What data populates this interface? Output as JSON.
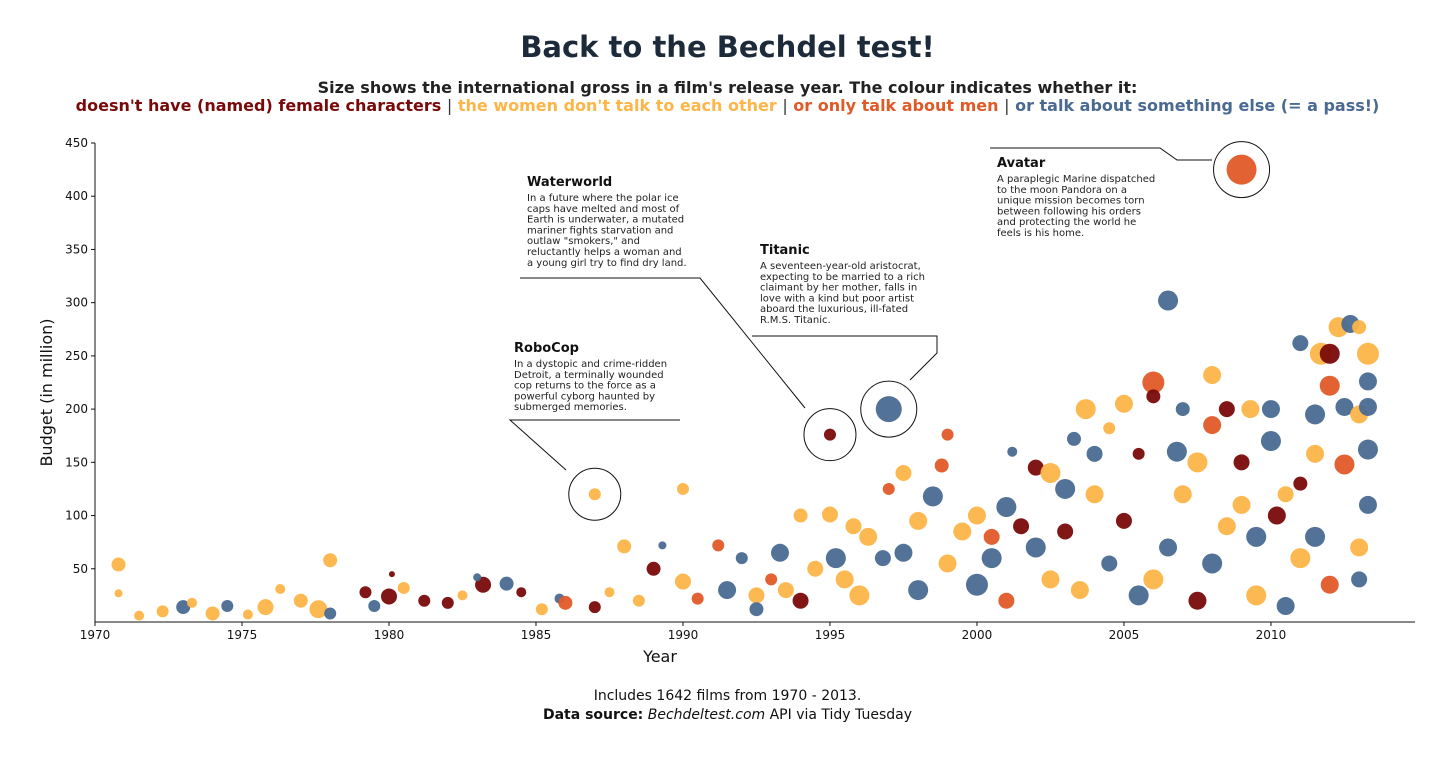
{
  "title": "Back to the Bechdel test!",
  "subtitle": "Size shows the international gross in a film's release year. The colour indicates whether it:",
  "legend": [
    {
      "label": "doesn't have (named) female characters",
      "color": "#7a0a0a"
    },
    {
      "label": "the women don't talk to each other",
      "color": "#fdb548"
    },
    {
      "label": "or only talk about men",
      "color": "#e05a28"
    },
    {
      "label": "or talk about something else (= a pass!)",
      "color": "#4a6a92"
    }
  ],
  "legend_separator": "|",
  "caption": "Includes 1642 films from 1970 - 2013.",
  "source": {
    "label": "Data source:",
    "site": "Bechdeltest.com",
    "rest": "API via Tidy Tuesday"
  },
  "chart_data": {
    "type": "scatter",
    "xlabel": "Year",
    "ylabel": "Budget (in million)",
    "xlim": [
      1970,
      2014.9
    ],
    "ylim": [
      0,
      450
    ],
    "x_ticks": [
      1970,
      1975,
      1980,
      1985,
      1990,
      1995,
      2000,
      2005,
      2010
    ],
    "y_ticks": [
      50,
      100,
      150,
      200,
      250,
      300,
      350,
      400,
      450
    ],
    "points": [
      {
        "x": 1970.8,
        "y": 54,
        "s": 7,
        "c": "#fdb548"
      },
      {
        "x": 1970.8,
        "y": 27,
        "s": 4,
        "c": "#fdb548"
      },
      {
        "x": 1971.5,
        "y": 6,
        "s": 5,
        "c": "#fdb548"
      },
      {
        "x": 1972.3,
        "y": 10,
        "s": 6,
        "c": "#fdb548"
      },
      {
        "x": 1973,
        "y": 14,
        "s": 7,
        "c": "#4a6a92"
      },
      {
        "x": 1973.3,
        "y": 18,
        "s": 5,
        "c": "#fdb548"
      },
      {
        "x": 1974,
        "y": 8,
        "s": 7,
        "c": "#fdb548"
      },
      {
        "x": 1974.5,
        "y": 15,
        "s": 6,
        "c": "#4a6a92"
      },
      {
        "x": 1975.2,
        "y": 7,
        "s": 5,
        "c": "#fdb548"
      },
      {
        "x": 1975.8,
        "y": 14,
        "s": 8,
        "c": "#fdb548"
      },
      {
        "x": 1976.3,
        "y": 31,
        "s": 5,
        "c": "#fdb548"
      },
      {
        "x": 1977,
        "y": 20,
        "s": 7,
        "c": "#fdb548"
      },
      {
        "x": 1977.6,
        "y": 12,
        "s": 9,
        "c": "#fdb548"
      },
      {
        "x": 1978,
        "y": 58,
        "s": 7,
        "c": "#fdb548"
      },
      {
        "x": 1978,
        "y": 8,
        "s": 6,
        "c": "#4a6a92"
      },
      {
        "x": 1979.2,
        "y": 28,
        "s": 6,
        "c": "#7a0a0a"
      },
      {
        "x": 1979.5,
        "y": 15,
        "s": 6,
        "c": "#4a6a92"
      },
      {
        "x": 1980,
        "y": 24,
        "s": 8,
        "c": "#7a0a0a"
      },
      {
        "x": 1980.1,
        "y": 45,
        "s": 3,
        "c": "#7a0a0a"
      },
      {
        "x": 1980.5,
        "y": 32,
        "s": 6,
        "c": "#fdb548"
      },
      {
        "x": 1981.2,
        "y": 20,
        "s": 6,
        "c": "#7a0a0a"
      },
      {
        "x": 1982,
        "y": 18,
        "s": 6,
        "c": "#7a0a0a"
      },
      {
        "x": 1982.5,
        "y": 25,
        "s": 5,
        "c": "#fdb548"
      },
      {
        "x": 1983.2,
        "y": 35,
        "s": 8,
        "c": "#7a0a0a"
      },
      {
        "x": 1983,
        "y": 42,
        "s": 4,
        "c": "#4a6a92"
      },
      {
        "x": 1984,
        "y": 36,
        "s": 7,
        "c": "#4a6a92"
      },
      {
        "x": 1984.5,
        "y": 28,
        "s": 5,
        "c": "#7a0a0a"
      },
      {
        "x": 1985.2,
        "y": 12,
        "s": 6,
        "c": "#fdb548"
      },
      {
        "x": 1985.8,
        "y": 22,
        "s": 5,
        "c": "#4a6a92"
      },
      {
        "x": 1986,
        "y": 18,
        "s": 7,
        "c": "#e05a28"
      },
      {
        "x": 1987,
        "y": 120,
        "s": 6,
        "c": "#fdb548"
      },
      {
        "x": 1987,
        "y": 14,
        "s": 6,
        "c": "#7a0a0a"
      },
      {
        "x": 1987.5,
        "y": 28,
        "s": 5,
        "c": "#fdb548"
      },
      {
        "x": 1988,
        "y": 71,
        "s": 7,
        "c": "#fdb548"
      },
      {
        "x": 1988.5,
        "y": 20,
        "s": 6,
        "c": "#fdb548"
      },
      {
        "x": 1989,
        "y": 50,
        "s": 7,
        "c": "#7a0a0a"
      },
      {
        "x": 1989.3,
        "y": 72,
        "s": 4,
        "c": "#4a6a92"
      },
      {
        "x": 1990,
        "y": 125,
        "s": 6,
        "c": "#fdb548"
      },
      {
        "x": 1990,
        "y": 38,
        "s": 8,
        "c": "#fdb548"
      },
      {
        "x": 1990.5,
        "y": 22,
        "s": 6,
        "c": "#e05a28"
      },
      {
        "x": 1991.2,
        "y": 72,
        "s": 6,
        "c": "#e05a28"
      },
      {
        "x": 1991.5,
        "y": 30,
        "s": 9,
        "c": "#4a6a92"
      },
      {
        "x": 1992,
        "y": 60,
        "s": 6,
        "c": "#4a6a92"
      },
      {
        "x": 1992.5,
        "y": 25,
        "s": 8,
        "c": "#fdb548"
      },
      {
        "x": 1993,
        "y": 40,
        "s": 6,
        "c": "#e05a28"
      },
      {
        "x": 1993.3,
        "y": 65,
        "s": 9,
        "c": "#4a6a92"
      },
      {
        "x": 1994,
        "y": 100,
        "s": 7,
        "c": "#fdb548"
      },
      {
        "x": 1994.5,
        "y": 50,
        "s": 8,
        "c": "#fdb548"
      },
      {
        "x": 1995,
        "y": 176,
        "s": 6,
        "c": "#7a0a0a"
      },
      {
        "x": 1995,
        "y": 101,
        "s": 8,
        "c": "#fdb548"
      },
      {
        "x": 1995.2,
        "y": 60,
        "s": 10,
        "c": "#4a6a92"
      },
      {
        "x": 1995.8,
        "y": 90,
        "s": 8,
        "c": "#fdb548"
      },
      {
        "x": 1996.3,
        "y": 80,
        "s": 9,
        "c": "#fdb548"
      },
      {
        "x": 1996.8,
        "y": 60,
        "s": 8,
        "c": "#4a6a92"
      },
      {
        "x": 1997,
        "y": 200,
        "s": 13,
        "c": "#4a6a92"
      },
      {
        "x": 1997,
        "y": 125,
        "s": 6,
        "c": "#e05a28"
      },
      {
        "x": 1997.5,
        "y": 140,
        "s": 8,
        "c": "#fdb548"
      },
      {
        "x": 1998,
        "y": 95,
        "s": 9,
        "c": "#fdb548"
      },
      {
        "x": 1998.5,
        "y": 118,
        "s": 10,
        "c": "#4a6a92"
      },
      {
        "x": 1998.8,
        "y": 147,
        "s": 7,
        "c": "#e05a28"
      },
      {
        "x": 1999,
        "y": 176,
        "s": 6,
        "c": "#e05a28"
      },
      {
        "x": 1999.5,
        "y": 85,
        "s": 9,
        "c": "#fdb548"
      },
      {
        "x": 2000,
        "y": 100,
        "s": 9,
        "c": "#fdb548"
      },
      {
        "x": 2000.5,
        "y": 60,
        "s": 10,
        "c": "#4a6a92"
      },
      {
        "x": 2001,
        "y": 108,
        "s": 10,
        "c": "#4a6a92"
      },
      {
        "x": 2001.2,
        "y": 160,
        "s": 5,
        "c": "#4a6a92"
      },
      {
        "x": 2001.5,
        "y": 90,
        "s": 8,
        "c": "#7a0a0a"
      },
      {
        "x": 2002,
        "y": 145,
        "s": 8,
        "c": "#7a0a0a"
      },
      {
        "x": 2002.5,
        "y": 140,
        "s": 10,
        "c": "#fdb548"
      },
      {
        "x": 2003,
        "y": 125,
        "s": 10,
        "c": "#4a6a92"
      },
      {
        "x": 2003.3,
        "y": 172,
        "s": 7,
        "c": "#4a6a92"
      },
      {
        "x": 2003.7,
        "y": 200,
        "s": 10,
        "c": "#fdb548"
      },
      {
        "x": 2004,
        "y": 158,
        "s": 8,
        "c": "#4a6a92"
      },
      {
        "x": 2004.5,
        "y": 182,
        "s": 6,
        "c": "#fdb548"
      },
      {
        "x": 2005,
        "y": 205,
        "s": 9,
        "c": "#fdb548"
      },
      {
        "x": 2005.5,
        "y": 158,
        "s": 6,
        "c": "#7a0a0a"
      },
      {
        "x": 2006,
        "y": 225,
        "s": 11,
        "c": "#e05a28"
      },
      {
        "x": 2006,
        "y": 212,
        "s": 7,
        "c": "#7a0a0a"
      },
      {
        "x": 2006.5,
        "y": 302,
        "s": 10,
        "c": "#4a6a92"
      },
      {
        "x": 2006.8,
        "y": 160,
        "s": 10,
        "c": "#4a6a92"
      },
      {
        "x": 2007,
        "y": 200,
        "s": 7,
        "c": "#4a6a92"
      },
      {
        "x": 2007.5,
        "y": 150,
        "s": 10,
        "c": "#fdb548"
      },
      {
        "x": 2008,
        "y": 232,
        "s": 9,
        "c": "#fdb548"
      },
      {
        "x": 2008,
        "y": 185,
        "s": 9,
        "c": "#e05a28"
      },
      {
        "x": 2008.5,
        "y": 200,
        "s": 8,
        "c": "#7a0a0a"
      },
      {
        "x": 2009,
        "y": 425,
        "s": 15,
        "c": "#e05a28"
      },
      {
        "x": 2009,
        "y": 150,
        "s": 8,
        "c": "#7a0a0a"
      },
      {
        "x": 2009.3,
        "y": 200,
        "s": 9,
        "c": "#fdb548"
      },
      {
        "x": 2009.5,
        "y": 80,
        "s": 10,
        "c": "#4a6a92"
      },
      {
        "x": 2010,
        "y": 200,
        "s": 9,
        "c": "#4a6a92"
      },
      {
        "x": 2010,
        "y": 170,
        "s": 10,
        "c": "#4a6a92"
      },
      {
        "x": 2010.2,
        "y": 100,
        "s": 9,
        "c": "#7a0a0a"
      },
      {
        "x": 2011,
        "y": 262,
        "s": 8,
        "c": "#4a6a92"
      },
      {
        "x": 2011,
        "y": 130,
        "s": 7,
        "c": "#7a0a0a"
      },
      {
        "x": 2011.5,
        "y": 195,
        "s": 10,
        "c": "#4a6a92"
      },
      {
        "x": 2011.5,
        "y": 158,
        "s": 9,
        "c": "#fdb548"
      },
      {
        "x": 2011.7,
        "y": 252,
        "s": 11,
        "c": "#fdb548"
      },
      {
        "x": 2012,
        "y": 252,
        "s": 10,
        "c": "#7a0a0a"
      },
      {
        "x": 2012,
        "y": 222,
        "s": 10,
        "c": "#e05a28"
      },
      {
        "x": 2012.3,
        "y": 277,
        "s": 10,
        "c": "#fdb548"
      },
      {
        "x": 2012.5,
        "y": 202,
        "s": 9,
        "c": "#4a6a92"
      },
      {
        "x": 2012.7,
        "y": 280,
        "s": 9,
        "c": "#4a6a92"
      },
      {
        "x": 2013,
        "y": 277,
        "s": 7,
        "c": "#fdb548"
      },
      {
        "x": 2013,
        "y": 195,
        "s": 9,
        "c": "#fdb548"
      },
      {
        "x": 2013.3,
        "y": 252,
        "s": 11,
        "c": "#fdb548"
      },
      {
        "x": 2013.3,
        "y": 226,
        "s": 9,
        "c": "#4a6a92"
      },
      {
        "x": 2013.3,
        "y": 202,
        "s": 9,
        "c": "#4a6a92"
      },
      {
        "x": 2013.3,
        "y": 162,
        "s": 10,
        "c": "#4a6a92"
      },
      {
        "x": 2013.3,
        "y": 110,
        "s": 9,
        "c": "#4a6a92"
      },
      {
        "x": 2012.5,
        "y": 148,
        "s": 10,
        "c": "#e05a28"
      },
      {
        "x": 2010.5,
        "y": 120,
        "s": 8,
        "c": "#fdb548"
      },
      {
        "x": 2004,
        "y": 120,
        "s": 9,
        "c": "#fdb548"
      },
      {
        "x": 2003,
        "y": 85,
        "s": 8,
        "c": "#7a0a0a"
      },
      {
        "x": 2005,
        "y": 95,
        "s": 8,
        "c": "#7a0a0a"
      },
      {
        "x": 2007,
        "y": 120,
        "s": 9,
        "c": "#fdb548"
      },
      {
        "x": 2009,
        "y": 110,
        "s": 9,
        "c": "#fdb548"
      },
      {
        "x": 2002,
        "y": 70,
        "s": 10,
        "c": "#4a6a92"
      },
      {
        "x": 2000,
        "y": 35,
        "s": 11,
        "c": "#4a6a92"
      },
      {
        "x": 2006,
        "y": 40,
        "s": 10,
        "c": "#fdb548"
      },
      {
        "x": 2008,
        "y": 55,
        "s": 10,
        "c": "#4a6a92"
      },
      {
        "x": 2011,
        "y": 60,
        "s": 10,
        "c": "#fdb548"
      },
      {
        "x": 2012,
        "y": 35,
        "s": 9,
        "c": "#e05a28"
      },
      {
        "x": 1999,
        "y": 55,
        "s": 9,
        "c": "#fdb548"
      },
      {
        "x": 1998,
        "y": 30,
        "s": 10,
        "c": "#4a6a92"
      },
      {
        "x": 1996,
        "y": 25,
        "s": 10,
        "c": "#fdb548"
      },
      {
        "x": 1994,
        "y": 20,
        "s": 8,
        "c": "#7a0a0a"
      },
      {
        "x": 1992.5,
        "y": 12,
        "s": 7,
        "c": "#4a6a92"
      },
      {
        "x": 2001,
        "y": 20,
        "s": 8,
        "c": "#e05a28"
      },
      {
        "x": 2003.5,
        "y": 30,
        "s": 9,
        "c": "#fdb548"
      },
      {
        "x": 2005.5,
        "y": 25,
        "s": 10,
        "c": "#4a6a92"
      },
      {
        "x": 2007.5,
        "y": 20,
        "s": 9,
        "c": "#7a0a0a"
      },
      {
        "x": 2009.5,
        "y": 25,
        "s": 10,
        "c": "#fdb548"
      },
      {
        "x": 2010.5,
        "y": 15,
        "s": 9,
        "c": "#4a6a92"
      },
      {
        "x": 2013,
        "y": 40,
        "s": 8,
        "c": "#4a6a92"
      },
      {
        "x": 2004.5,
        "y": 55,
        "s": 8,
        "c": "#4a6a92"
      },
      {
        "x": 2002.5,
        "y": 40,
        "s": 9,
        "c": "#fdb548"
      },
      {
        "x": 2006.5,
        "y": 70,
        "s": 9,
        "c": "#4a6a92"
      },
      {
        "x": 2008.5,
        "y": 90,
        "s": 9,
        "c": "#fdb548"
      },
      {
        "x": 2011.5,
        "y": 80,
        "s": 10,
        "c": "#4a6a92"
      },
      {
        "x": 2013,
        "y": 70,
        "s": 9,
        "c": "#fdb548"
      },
      {
        "x": 2000.5,
        "y": 80,
        "s": 8,
        "c": "#e05a28"
      },
      {
        "x": 1997.5,
        "y": 65,
        "s": 9,
        "c": "#4a6a92"
      },
      {
        "x": 1995.5,
        "y": 40,
        "s": 9,
        "c": "#fdb548"
      },
      {
        "x": 1993.5,
        "y": 30,
        "s": 8,
        "c": "#fdb548"
      }
    ],
    "annotations": [
      {
        "title": "RoboCop",
        "lines": [
          "In a dystopic and crime-ridden",
          "Detroit, a terminally wounded",
          "cop returns to the force as a",
          "powerful cyborg haunted by",
          "submerged memories."
        ]
      },
      {
        "title": "Waterworld",
        "lines": [
          "In a future where the polar ice",
          "caps have melted and most of",
          "Earth is underwater, a mutated",
          "mariner fights starvation and",
          "outlaw \"smokers,\" and",
          "reluctantly helps a woman and",
          "a young girl try to find dry land."
        ]
      },
      {
        "title": "Titanic",
        "lines": [
          "A seventeen-year-old aristocrat,",
          "expecting to be married to a rich",
          "claimant by her mother, falls in",
          "love with a kind but poor artist",
          "aboard the luxurious, ill-fated",
          "R.M.S. Titanic."
        ]
      },
      {
        "title": "Avatar",
        "lines": [
          "A paraplegic Marine dispatched",
          "to the moon Pandora on a",
          "unique mission becomes torn",
          "between following his orders",
          "and protecting the world he",
          "feels is his home."
        ]
      }
    ]
  }
}
